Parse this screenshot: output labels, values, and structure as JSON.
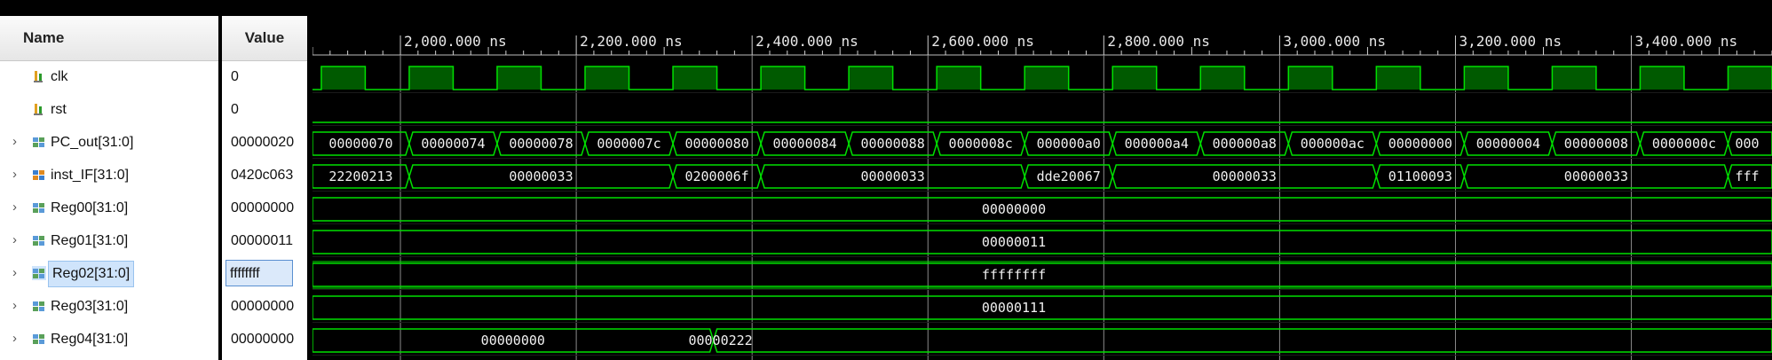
{
  "columns": {
    "name_header": "Name",
    "value_header": "Value"
  },
  "timeline": {
    "start_ns": 1900,
    "end_ns": 3560,
    "major_step_ns": 200,
    "minor_step_ns": 20,
    "unit": "ns",
    "tick_labels": [
      {
        "t": 2000,
        "label": "2,000.000 ns"
      },
      {
        "t": 2200,
        "label": "2,200.000 ns"
      },
      {
        "t": 2400,
        "label": "2,400.000 ns"
      },
      {
        "t": 2600,
        "label": "2,600.000 ns"
      },
      {
        "t": 2800,
        "label": "2,800.000 ns"
      },
      {
        "t": 3000,
        "label": "3,000.000 ns"
      },
      {
        "t": 3200,
        "label": "3,200.000 ns"
      },
      {
        "t": 3400,
        "label": "3,400.000 ns"
      }
    ]
  },
  "colors": {
    "wave": "#00e000",
    "fill": "#005a00",
    "cursor": "#8a8a8a"
  },
  "signals": [
    {
      "name": "clk",
      "value": "0",
      "icon": "bit-signal-icon",
      "expandable": false,
      "kind": "clock",
      "clock_period_ns": 100,
      "clock_first_rise_ns": 1910
    },
    {
      "name": "rst",
      "value": "0",
      "icon": "bit-signal-icon",
      "expandable": false,
      "kind": "bit",
      "level": 0
    },
    {
      "name": "PC_out[31:0]",
      "value": "00000020",
      "icon": "bus-signal-icon",
      "expandable": true,
      "kind": "bus",
      "segments": [
        {
          "t0": 1900,
          "t1": 2010,
          "text": "00000070"
        },
        {
          "t0": 2010,
          "t1": 2110,
          "text": "00000074"
        },
        {
          "t0": 2110,
          "t1": 2210,
          "text": "00000078"
        },
        {
          "t0": 2210,
          "t1": 2310,
          "text": "0000007c"
        },
        {
          "t0": 2310,
          "t1": 2410,
          "text": "00000080"
        },
        {
          "t0": 2410,
          "t1": 2510,
          "text": "00000084"
        },
        {
          "t0": 2510,
          "t1": 2610,
          "text": "00000088"
        },
        {
          "t0": 2610,
          "t1": 2710,
          "text": "0000008c"
        },
        {
          "t0": 2710,
          "t1": 2810,
          "text": "000000a0"
        },
        {
          "t0": 2810,
          "t1": 2910,
          "text": "000000a4"
        },
        {
          "t0": 2910,
          "t1": 3010,
          "text": "000000a8"
        },
        {
          "t0": 3010,
          "t1": 3110,
          "text": "000000ac"
        },
        {
          "t0": 3110,
          "t1": 3210,
          "text": "00000000"
        },
        {
          "t0": 3210,
          "t1": 3310,
          "text": "00000004"
        },
        {
          "t0": 3310,
          "t1": 3410,
          "text": "00000008"
        },
        {
          "t0": 3410,
          "t1": 3510,
          "text": "0000000c"
        },
        {
          "t0": 3510,
          "t1": 3560,
          "text": "000"
        }
      ]
    },
    {
      "name": "inst_IF[31:0]",
      "value": "0420c063",
      "icon": "bus-orange-signal-icon",
      "expandable": true,
      "kind": "bus",
      "segments": [
        {
          "t0": 1900,
          "t1": 2010,
          "text": "22200213"
        },
        {
          "t0": 2010,
          "t1": 2310,
          "text": "00000033"
        },
        {
          "t0": 2310,
          "t1": 2410,
          "text": "0200006f"
        },
        {
          "t0": 2410,
          "t1": 2710,
          "text": "00000033"
        },
        {
          "t0": 2710,
          "t1": 2810,
          "text": "dde20067"
        },
        {
          "t0": 2810,
          "t1": 3110,
          "text": "00000033"
        },
        {
          "t0": 3110,
          "t1": 3210,
          "text": "01100093"
        },
        {
          "t0": 3210,
          "t1": 3510,
          "text": "00000033"
        },
        {
          "t0": 3510,
          "t1": 3560,
          "text": "fff"
        }
      ]
    },
    {
      "name": "Reg00[31:0]",
      "value": "00000000",
      "icon": "bus-signal-icon",
      "expandable": true,
      "kind": "bus",
      "segments": [
        {
          "t0": 1900,
          "t1": 3560,
          "text": "00000000"
        }
      ]
    },
    {
      "name": "Reg01[31:0]",
      "value": "00000011",
      "icon": "bus-signal-icon",
      "expandable": true,
      "kind": "bus",
      "segments": [
        {
          "t0": 1900,
          "t1": 3560,
          "text": "00000011"
        }
      ]
    },
    {
      "name": "Reg02[31:0]",
      "value": "ffffffff",
      "icon": "bus-signal-icon",
      "expandable": true,
      "kind": "bus",
      "selected": true,
      "segments": [
        {
          "t0": 1900,
          "t1": 3560,
          "text": "ffffffff"
        }
      ]
    },
    {
      "name": "Reg03[31:0]",
      "value": "00000000",
      "icon": "bus-signal-icon",
      "expandable": true,
      "kind": "bus",
      "segments": [
        {
          "t0": 1900,
          "t1": 3560,
          "text": "00000111"
        }
      ]
    },
    {
      "name": "Reg04[31:0]",
      "value": "00000000",
      "icon": "bus-signal-icon",
      "expandable": true,
      "kind": "bus",
      "segments": [
        {
          "t0": 1900,
          "t1": 2356,
          "text": "00000000"
        },
        {
          "t0": 2356,
          "t1": 3560,
          "text": "00000222"
        }
      ]
    }
  ]
}
